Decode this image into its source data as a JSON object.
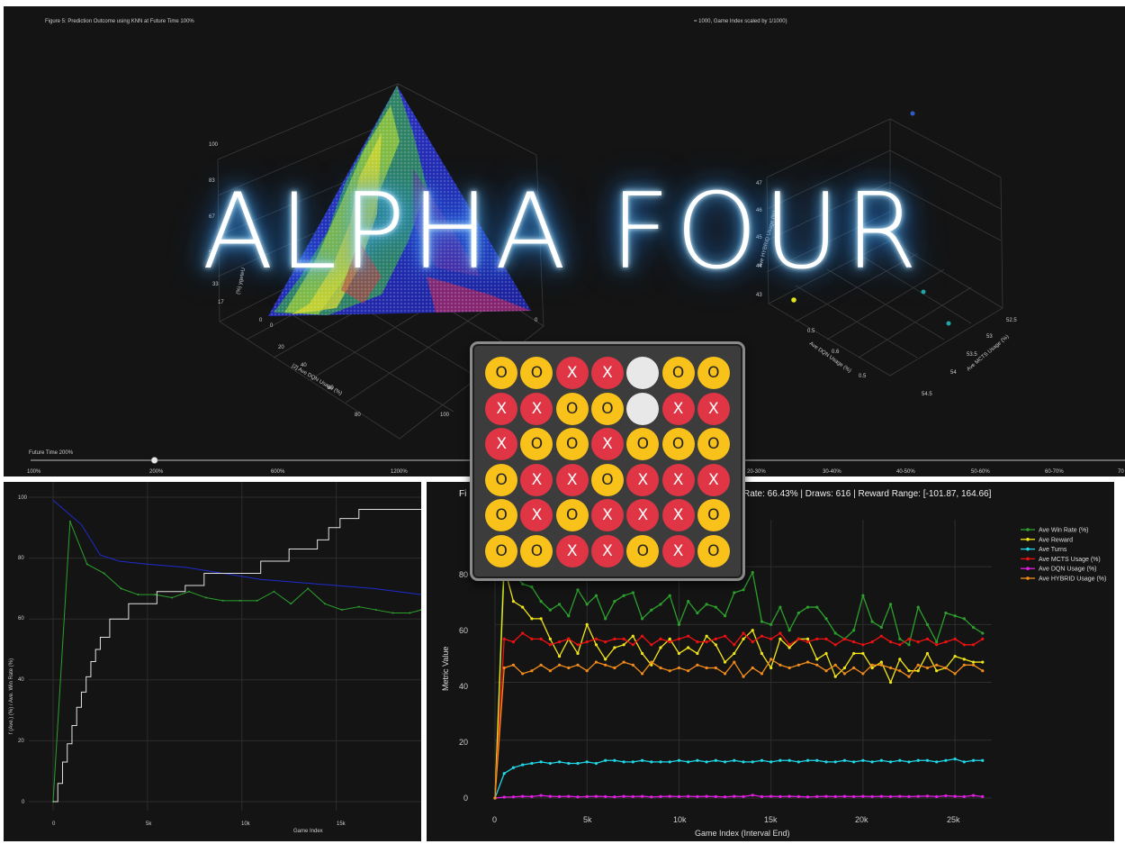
{
  "title": "ALPHA FOUR",
  "top": {
    "figure_caption": "Figure 5: Prediction Outcome using KNN at Future Time 100%",
    "right_caption": "= 1000, Game Index scaled by 1/1000)",
    "left_axis_label": "[2] Ave DQN Usage (%)",
    "left_side_label": "(%) ygeteU",
    "left_side_ticks": [
      "100",
      "83",
      "67",
      "50",
      "33",
      "17",
      "0"
    ],
    "left_bottom_ticks": [
      "0",
      "20",
      "40",
      "60",
      "80",
      "100"
    ],
    "right_axis_label_x": "Ave DQN Usage (%)",
    "right_axis_label_y": "Ave MCTS Usage (%)",
    "right_side_label": "Ave HYBRID Usage (%)",
    "right_side_ticks": [
      "47",
      "46",
      "45",
      "44",
      "43"
    ],
    "right_bottom_ticks_x": [
      "0.5",
      "0.6",
      "0.5"
    ],
    "right_bottom_ticks_y": [
      "52.5",
      "53",
      "53.5",
      "54",
      "54.5"
    ],
    "slider": {
      "label": "Future Time 200%",
      "value": 0.2,
      "ticks": [
        "100%",
        "200%",
        "600%",
        "1200%"
      ]
    },
    "right_range_ticks": [
      "20-30%",
      "30-40%",
      "40-50%",
      "50-60%",
      "60-70%",
      "70"
    ]
  },
  "bottom_left": {
    "y_axis_label": "f (Ave.) (%) / Ave. Win Rate (%)",
    "x_axis_label": "Game Index",
    "y_ticks": [
      "100",
      "80",
      "60",
      "40",
      "20",
      "0"
    ],
    "x_ticks": [
      "0",
      "5k",
      "10k",
      "15k"
    ]
  },
  "bottom_right": {
    "header_left": "Fi",
    "header_right": "Rate: 66.43% | Draws: 616 | Reward Range: [-101.87, 164.66]",
    "y_axis_label": "Metric Value",
    "x_axis_label": "Game Index (Interval End)",
    "y_ticks": [
      "80",
      "60",
      "40",
      "20",
      "0"
    ],
    "x_ticks": [
      "0",
      "5k",
      "10k",
      "15k",
      "20k",
      "25k"
    ]
  },
  "board": {
    "rows": [
      [
        "O",
        "O",
        "X",
        "X",
        "",
        "O",
        "O"
      ],
      [
        "X",
        "X",
        "O",
        "O",
        "",
        "X",
        "X"
      ],
      [
        "X",
        "O",
        "O",
        "X",
        "O",
        "O",
        "O"
      ],
      [
        "O",
        "X",
        "X",
        "O",
        "X",
        "X",
        "X"
      ],
      [
        "O",
        "X",
        "O",
        "X",
        "X",
        "X",
        "O"
      ],
      [
        "O",
        "O",
        "X",
        "X",
        "O",
        "X",
        "O"
      ]
    ]
  },
  "chart_data": [
    {
      "type": "line",
      "title": "",
      "xlabel": "Game Index (Interval End)",
      "ylabel": "Metric Value",
      "xlim": [
        0,
        27000
      ],
      "ylim": [
        0,
        90
      ],
      "grid": true,
      "legend": "top-right",
      "x": [
        0,
        500,
        1000,
        1500,
        2000,
        2500,
        3000,
        3500,
        4000,
        4500,
        5000,
        5500,
        6000,
        6500,
        7000,
        7500,
        8000,
        8500,
        9000,
        9500,
        10000,
        10500,
        11000,
        11500,
        12000,
        12500,
        13000,
        13500,
        14000,
        14500,
        15000,
        15500,
        16000,
        16500,
        17000,
        17500,
        18000,
        18500,
        19000,
        19500,
        20000,
        20500,
        21000,
        21500,
        22000,
        22500,
        23000,
        23500,
        24000,
        24500,
        25000,
        25500,
        26000,
        26500
      ],
      "series": [
        {
          "name": "Ave Win Rate (%)",
          "color": "#2ca02c",
          "values": [
            0,
            85,
            78,
            74,
            73,
            68,
            65,
            67,
            63,
            72,
            67,
            70,
            62,
            68,
            70,
            71,
            62,
            65,
            67,
            70,
            60,
            68,
            64,
            67,
            66,
            63,
            71,
            72,
            78,
            61,
            60,
            66,
            58,
            64,
            66,
            66,
            62,
            57,
            55,
            58,
            70,
            61,
            59,
            67,
            55,
            53,
            66,
            60,
            54,
            64,
            63,
            62,
            59,
            57
          ]
        },
        {
          "name": "Ave Reward",
          "color": "#f2e617",
          "values": [
            0,
            80,
            68,
            66,
            62,
            62,
            55,
            49,
            55,
            50,
            60,
            53,
            48,
            52,
            53,
            56,
            50,
            46,
            52,
            55,
            50,
            52,
            50,
            56,
            53,
            47,
            50,
            55,
            58,
            50,
            45,
            55,
            52,
            55,
            55,
            48,
            50,
            42,
            45,
            50,
            50,
            45,
            47,
            40,
            48,
            44,
            44,
            50,
            44,
            45,
            49,
            48,
            47,
            47
          ]
        },
        {
          "name": "Ave Turns",
          "color": "#1fd8e8",
          "values": [
            0,
            8.5,
            10.5,
            11.5,
            12,
            12.5,
            12,
            12.5,
            12,
            12,
            12.5,
            12,
            13,
            13,
            12.5,
            12.5,
            13,
            12.5,
            12.5,
            12.5,
            13,
            12.5,
            13,
            12.5,
            13,
            12.5,
            13,
            12.5,
            12.5,
            13,
            12.5,
            13,
            13,
            12.5,
            13,
            13,
            12.5,
            12.5,
            13,
            12.5,
            13,
            12.5,
            13,
            12.5,
            13,
            12.5,
            13,
            13,
            12.5,
            13,
            13.5,
            12.5,
            13,
            13
          ]
        },
        {
          "name": "Ave MCTS Usage (%)",
          "color": "#ee1111",
          "values": [
            0,
            55,
            54,
            57,
            55,
            55,
            53,
            54,
            55,
            53,
            54,
            55,
            54,
            55,
            55,
            53,
            56,
            53,
            55,
            54,
            55,
            56,
            54,
            54,
            55,
            56,
            53,
            57,
            54,
            56,
            55,
            57,
            53,
            55,
            54,
            55,
            55,
            53,
            55,
            54,
            53,
            54,
            56,
            54,
            53,
            55,
            54,
            55,
            53,
            54,
            55,
            53,
            53,
            55
          ]
        },
        {
          "name": "Ave DQN Usage (%)",
          "color": "#e51ee5",
          "values": [
            0,
            0.3,
            0.4,
            0.6,
            0.5,
            0.9,
            0.6,
            0.5,
            0.6,
            0.4,
            0.5,
            0.6,
            0.5,
            0.4,
            0.6,
            0.5,
            0.6,
            0.4,
            0.5,
            0.6,
            0.5,
            0.6,
            0.5,
            0.6,
            0.5,
            0.4,
            0.6,
            0.5,
            1.0,
            0.5,
            0.6,
            0.5,
            0.6,
            0.5,
            0.4,
            0.5,
            0.6,
            0.5,
            0.6,
            0.5,
            0.6,
            0.5,
            0.6,
            0.5,
            0.6,
            0.5,
            0.6,
            0.7,
            0.5,
            0.8,
            0.6,
            0.5,
            0.9,
            0.5
          ]
        },
        {
          "name": "Ave HYBRID Usage (%)",
          "color": "#f28c1b",
          "values": [
            0,
            45,
            46,
            43,
            44,
            46,
            44,
            46,
            45,
            46,
            44,
            47,
            46,
            45,
            47,
            46,
            43,
            47,
            45,
            44,
            45,
            44,
            46,
            45,
            45,
            43,
            47,
            42,
            45,
            43,
            48,
            46,
            45,
            46,
            47,
            46,
            44,
            46,
            43,
            45,
            43,
            46,
            46,
            45,
            44,
            42,
            46,
            45,
            46,
            45,
            43,
            46,
            46,
            44
          ]
        }
      ]
    },
    {
      "type": "line",
      "title": "",
      "xlabel": "Game Index",
      "ylabel": "f (Ave.) (%) / Ave. Win Rate (%)",
      "xlim": [
        0,
        19500
      ],
      "ylim": [
        0,
        100
      ],
      "grid": true,
      "series": [
        {
          "name": "",
          "color": "#2ca02c",
          "x": [
            0,
            900,
            1800,
            2700,
            3600,
            4500,
            5400,
            6300,
            7200,
            8100,
            9000,
            9900,
            10800,
            11700,
            12600,
            13500,
            14400,
            15300,
            16200,
            17100,
            18000,
            18900,
            19500
          ],
          "values": [
            0,
            92,
            78,
            75,
            70,
            68,
            68,
            67,
            69,
            67,
            66,
            66,
            66,
            69,
            65,
            70,
            65,
            63,
            64,
            63,
            62,
            62,
            63
          ]
        },
        {
          "name": "",
          "color": "#1f2bd0",
          "x": [
            0,
            1500,
            2500,
            3500,
            5000,
            7000,
            9000,
            11000,
            13000,
            15000,
            17000,
            19500
          ],
          "values": [
            99,
            91,
            81,
            79,
            78,
            77,
            75,
            73,
            72,
            71,
            70,
            68
          ]
        },
        {
          "name": "",
          "color": "#e0e0e0",
          "x": [
            0,
            250,
            500,
            750,
            1000,
            1250,
            1500,
            1750,
            2000,
            2250,
            2500,
            3000,
            4000,
            5500,
            7000,
            8000,
            11000,
            12500,
            14000,
            14600,
            15200,
            16200,
            19500
          ],
          "values": [
            0,
            6,
            13,
            19,
            25,
            31,
            36,
            41,
            46,
            50,
            54,
            60,
            65,
            69,
            71,
            75,
            79,
            83,
            86,
            90,
            93,
            96,
            96
          ]
        }
      ]
    }
  ]
}
